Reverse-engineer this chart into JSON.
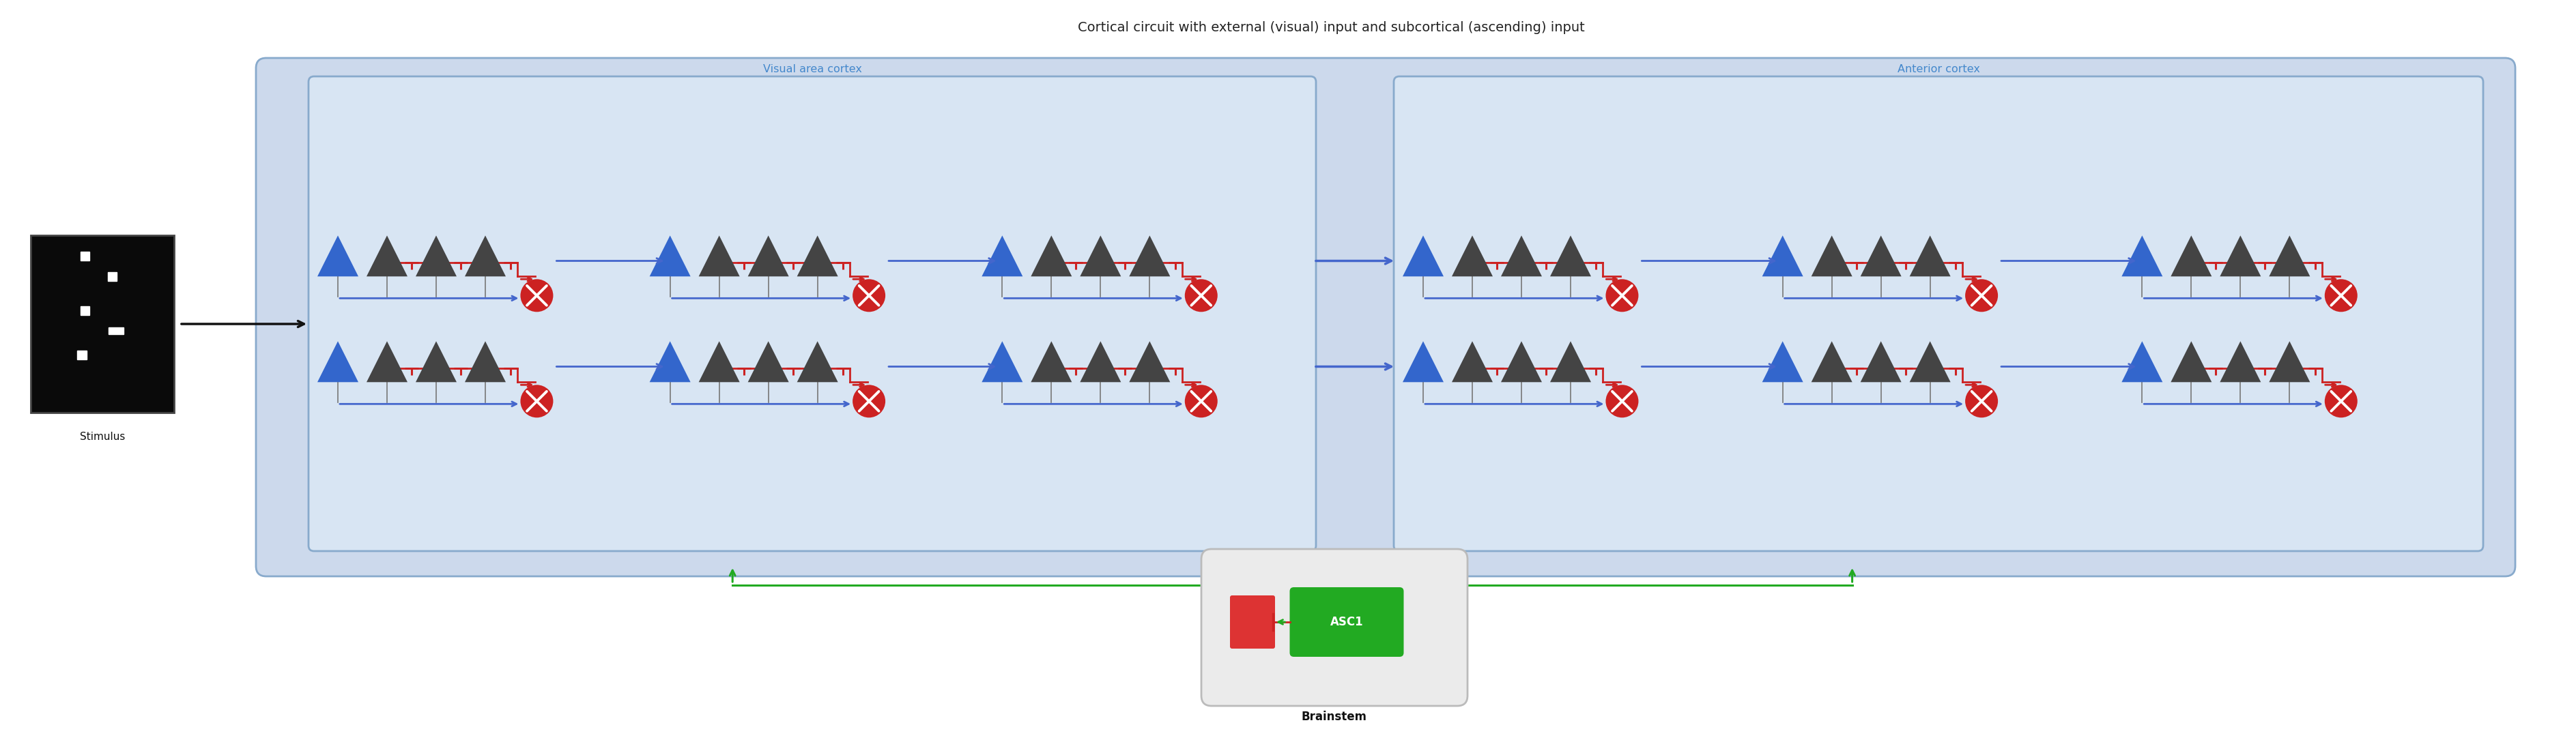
{
  "title": "Cortical circuit with external (visual) input and subcortical (ascending) input",
  "title_fontsize": 14,
  "bg_color": "#ffffff",
  "outer_box_color": "#ccd9ec",
  "outer_box_edge": "#88aacc",
  "inner_box_color": "#d8e5f3",
  "inner_box_edge": "#88aacc",
  "brainstem_box_color": "#e8e8e8",
  "brainstem_box_edge": "#aaaaaa",
  "visual_label": "Visual area cortex",
  "anterior_label": "Anterior cortex",
  "brainstem_label": "Brainstem",
  "stimulus_label": "Stimulus",
  "asc1_label": "ASC1",
  "label_color_blue": "#4488cc",
  "neuron_dark": "#444444",
  "neuron_blue": "#3366cc",
  "neuron_red": "#cc2222",
  "synapse_red": "#cc2222",
  "arrow_blue": "#4466cc",
  "arrow_black": "#111111",
  "arrow_green": "#22aa22",
  "green_box_color": "#22aa22",
  "red_box_color": "#dd3333"
}
